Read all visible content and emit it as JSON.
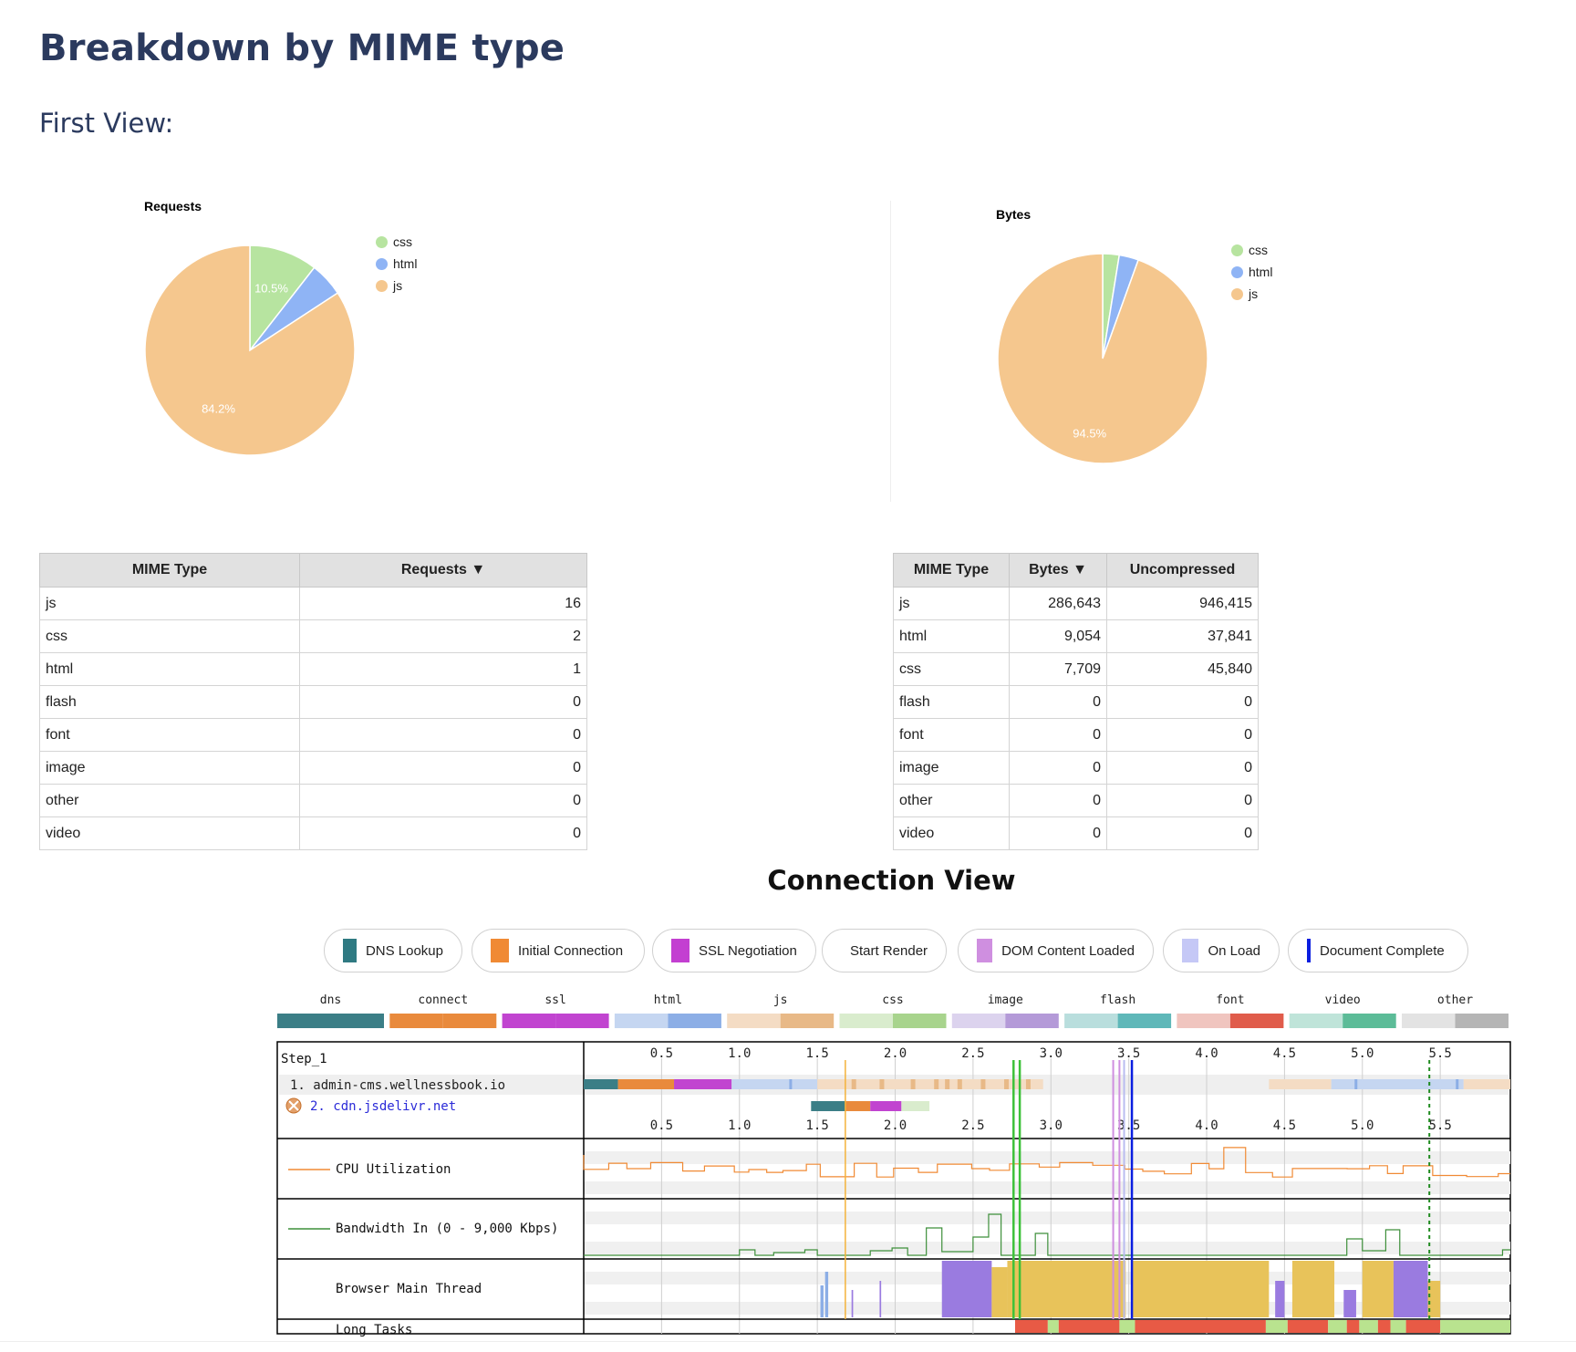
{
  "page": {
    "title": "Breakdown by MIME type",
    "subtitle": "First View:"
  },
  "chart_data": [
    {
      "type": "pie",
      "title": "Requests",
      "labels": [
        "css",
        "html",
        "js"
      ],
      "values": [
        2,
        1,
        16
      ],
      "data_labels": [
        "10.5%",
        "",
        "84.2%"
      ],
      "colors": [
        "#b7e4a0",
        "#8fb4f5",
        "#f5c78e"
      ],
      "legend": "right"
    },
    {
      "type": "pie",
      "title": "Bytes",
      "labels": [
        "css",
        "html",
        "js"
      ],
      "values": [
        7709,
        9054,
        286643
      ],
      "data_labels": [
        "",
        "",
        "94.5%"
      ],
      "colors": [
        "#b7e4a0",
        "#8fb4f5",
        "#f5c78e"
      ],
      "legend": "right"
    }
  ],
  "requests_table": {
    "headers": [
      "MIME Type",
      "Requests ▼"
    ],
    "rows": [
      [
        "js",
        "16"
      ],
      [
        "css",
        "2"
      ],
      [
        "html",
        "1"
      ],
      [
        "flash",
        "0"
      ],
      [
        "font",
        "0"
      ],
      [
        "image",
        "0"
      ],
      [
        "other",
        "0"
      ],
      [
        "video",
        "0"
      ]
    ]
  },
  "bytes_table": {
    "headers": [
      "MIME Type",
      "Bytes ▼",
      "Uncompressed"
    ],
    "rows": [
      [
        "js",
        "286,643",
        "946,415"
      ],
      [
        "html",
        "9,054",
        "37,841"
      ],
      [
        "css",
        "7,709",
        "45,840"
      ],
      [
        "flash",
        "0",
        "0"
      ],
      [
        "font",
        "0",
        "0"
      ],
      [
        "image",
        "0",
        "0"
      ],
      [
        "other",
        "0",
        "0"
      ],
      [
        "video",
        "0",
        "0"
      ]
    ]
  },
  "connection_view": {
    "title": "Connection View",
    "legend": [
      {
        "label": "DNS Lookup",
        "color": "#2f7a82",
        "kind": "box"
      },
      {
        "label": "Initial Connection",
        "color": "#f08a34",
        "kind": "box"
      },
      {
        "label": "SSL Negotiation",
        "color": "#c33fd1",
        "kind": "box"
      },
      {
        "label": "Start Render",
        "color": "#3ec13a",
        "kind": "line"
      },
      {
        "label": "DOM Content Loaded",
        "color": "#cf8fe0",
        "kind": "box"
      },
      {
        "label": "On Load",
        "color": "#c5c8f6",
        "kind": "box"
      },
      {
        "label": "Document Complete",
        "color": "#0a1ee0",
        "kind": "line"
      }
    ],
    "type_legend": [
      {
        "label": "dns",
        "c1": "#3b7e86",
        "c2": "#3b7e86"
      },
      {
        "label": "connect",
        "c1": "#e98a3c",
        "c2": "#e98a3c"
      },
      {
        "label": "ssl",
        "c1": "#c144d0",
        "c2": "#c144d0"
      },
      {
        "label": "html",
        "c1": "#c5d6f1",
        "c2": "#8caee6"
      },
      {
        "label": "js",
        "c1": "#f4dcc4",
        "c2": "#e8b987"
      },
      {
        "label": "css",
        "c1": "#d9eccd",
        "c2": "#a8d48d"
      },
      {
        "label": "image",
        "c1": "#dcd3ee",
        "c2": "#b49ad8"
      },
      {
        "label": "flash",
        "c1": "#b9dedd",
        "c2": "#5fb8b9"
      },
      {
        "label": "font",
        "c1": "#f0c5bf",
        "c2": "#e05c4b"
      },
      {
        "label": "video",
        "c1": "#bfe4d9",
        "c2": "#5cbc98"
      },
      {
        "label": "other",
        "c1": "#e3e3e3",
        "c2": "#b5b5b5"
      }
    ],
    "step_label": "Step_1",
    "hosts": [
      {
        "label": "1. admin-cms.wellnessbook.io",
        "color": "#222"
      },
      {
        "label": "2. cdn.jsdelivr.net",
        "color": "#2a2ad8"
      }
    ],
    "ticks": [
      "0.5",
      "1.0",
      "1.5",
      "2.0",
      "2.5",
      "3.0",
      "3.5",
      "4.0",
      "4.5",
      "5.0",
      "5.5"
    ],
    "tick_values": [
      0.5,
      1.0,
      1.5,
      2.0,
      2.5,
      3.0,
      3.5,
      4.0,
      4.5,
      5.0,
      5.5
    ],
    "time_range": [
      0,
      5.95
    ],
    "rows": {
      "cpu": "CPU Utilization",
      "bandwidth": "Bandwidth In (0 - 9,000 Kbps)",
      "main_thread": "Browser Main Thread",
      "long_tasks": "Long Tasks"
    },
    "markers": {
      "start_render": [
        2.76,
        2.8
      ],
      "dom_content_loaded": [
        3.4,
        3.44
      ],
      "on_load": [
        3.47
      ],
      "document_complete": [
        3.52
      ],
      "orange_line": [
        1.68
      ],
      "dashed_green": [
        5.43
      ]
    },
    "connection1_segments": [
      {
        "start": 0.0,
        "end": 0.22,
        "color": "#3b7e86"
      },
      {
        "start": 0.22,
        "end": 0.58,
        "color": "#e98a3c"
      },
      {
        "start": 0.58,
        "end": 0.95,
        "color": "#c144d0"
      },
      {
        "start": 0.95,
        "end": 1.5,
        "color": "#c5d6f1"
      },
      {
        "start": 1.5,
        "end": 2.95,
        "color": "#f4dcc4"
      },
      {
        "start": 4.4,
        "end": 4.8,
        "color": "#f4dcc4"
      },
      {
        "start": 4.8,
        "end": 5.65,
        "color": "#c5d6f1"
      },
      {
        "start": 5.65,
        "end": 5.95,
        "color": "#f4dcc4"
      }
    ],
    "connection2_segments": [
      {
        "start": 1.46,
        "end": 1.68,
        "color": "#3b7e86"
      },
      {
        "start": 1.68,
        "end": 1.84,
        "color": "#e98a3c"
      },
      {
        "start": 1.84,
        "end": 2.04,
        "color": "#c144d0"
      },
      {
        "start": 2.04,
        "end": 2.22,
        "color": "#d9eccd"
      }
    ],
    "long_tasks": [
      {
        "start": 2.77,
        "end": 2.98,
        "color": "#e85a45"
      },
      {
        "start": 2.98,
        "end": 3.05,
        "color": "#b9e38f"
      },
      {
        "start": 3.05,
        "end": 3.44,
        "color": "#e85a45"
      },
      {
        "start": 3.44,
        "end": 3.54,
        "color": "#b9e38f"
      },
      {
        "start": 3.54,
        "end": 4.38,
        "color": "#e85a45"
      },
      {
        "start": 4.38,
        "end": 4.52,
        "color": "#b9e38f"
      },
      {
        "start": 4.52,
        "end": 4.78,
        "color": "#e85a45"
      },
      {
        "start": 4.78,
        "end": 4.9,
        "color": "#b9e38f"
      },
      {
        "start": 4.9,
        "end": 4.98,
        "color": "#e85a45"
      },
      {
        "start": 4.98,
        "end": 5.1,
        "color": "#b9e38f"
      },
      {
        "start": 5.1,
        "end": 5.18,
        "color": "#e85a45"
      },
      {
        "start": 5.18,
        "end": 5.28,
        "color": "#b9e38f"
      },
      {
        "start": 5.28,
        "end": 5.5,
        "color": "#e85a45"
      },
      {
        "start": 5.5,
        "end": 5.95,
        "color": "#b9e38f"
      }
    ]
  }
}
